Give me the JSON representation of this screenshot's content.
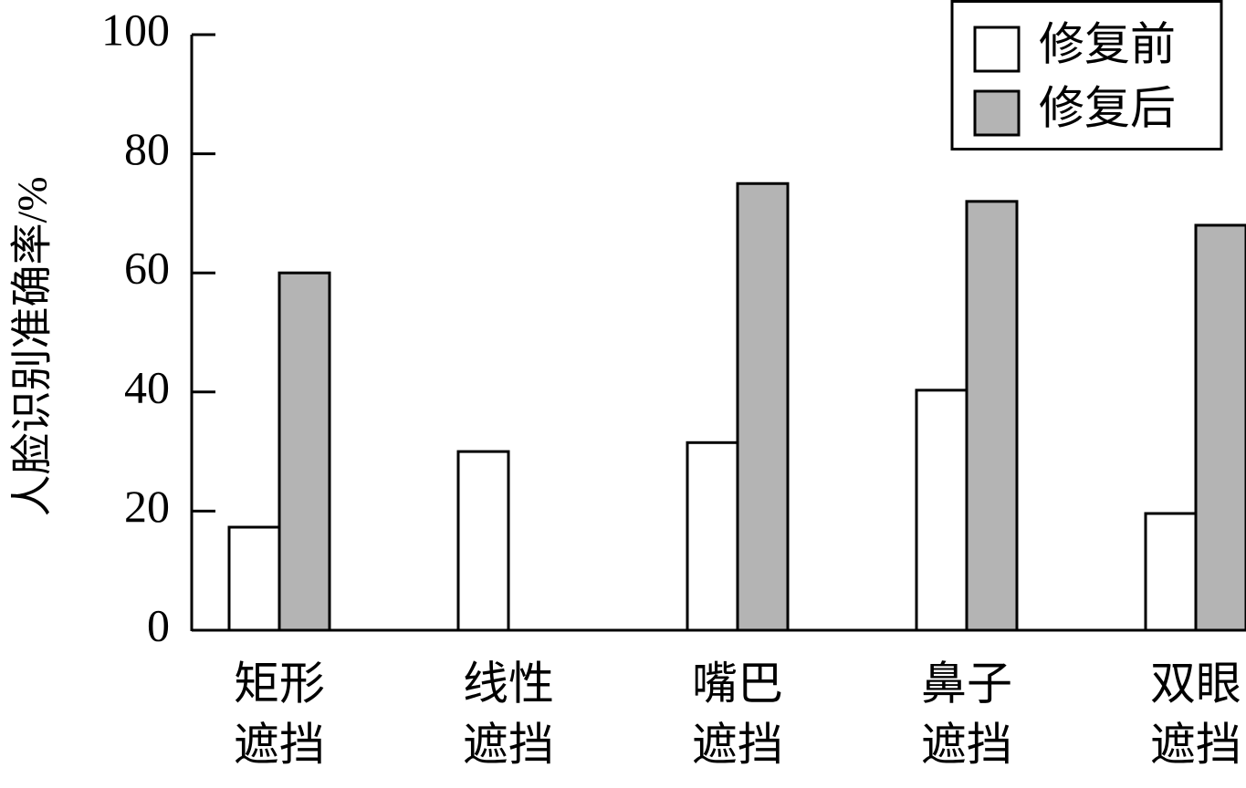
{
  "chart_data": {
    "type": "bar",
    "ylabel": "人脸识别准确率/%",
    "categories": [
      [
        "矩形",
        "遮挡"
      ],
      [
        "线性",
        "遮挡"
      ],
      [
        "嘴巴",
        "遮挡"
      ],
      [
        "鼻子",
        "遮挡"
      ],
      [
        "双眼",
        "遮挡"
      ]
    ],
    "series": [
      {
        "name": "修复前",
        "color": "#ffffff",
        "values": [
          17.3,
          30,
          31.5,
          40.3,
          19.6
        ]
      },
      {
        "name": "修复后",
        "color": "#b4b4b4",
        "values": [
          60,
          null,
          75,
          72,
          68
        ]
      }
    ],
    "ylim": [
      0,
      100
    ],
    "yticks": [
      0,
      20,
      40,
      60,
      80,
      100
    ],
    "legend": "top-right"
  }
}
